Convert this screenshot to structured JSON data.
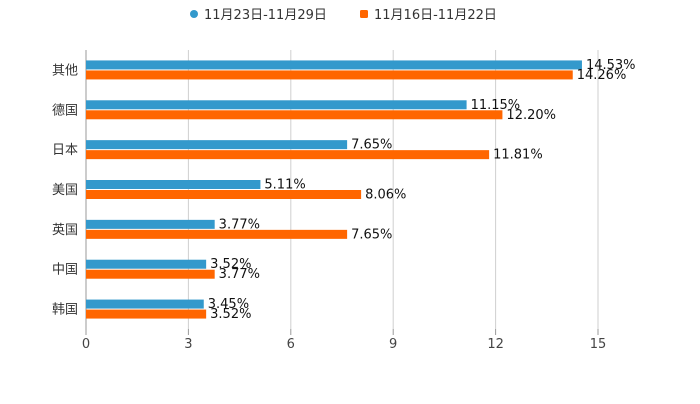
{
  "chart_data": {
    "type": "bar",
    "orientation": "horizontal",
    "categories": [
      "其他",
      "德国",
      "日本",
      "美国",
      "英国",
      "中国",
      "韩国"
    ],
    "series": [
      {
        "name": "11月23日-11月29日",
        "color": "#3399cc",
        "values": [
          14.53,
          11.15,
          7.65,
          5.11,
          3.77,
          3.52,
          3.45
        ],
        "labels": [
          "14.53%",
          "11.15%",
          "7.65%",
          "5.11%",
          "3.77%",
          "3.52%",
          "3.45%"
        ]
      },
      {
        "name": "11月16日-11月22日",
        "color": "#ff6600",
        "values": [
          14.26,
          12.2,
          11.81,
          8.06,
          7.65,
          3.77,
          3.52
        ],
        "labels": [
          "14.26%",
          "12.20%",
          "11.81%",
          "8.06%",
          "7.65%",
          "3.77%",
          "3.52%"
        ]
      }
    ],
    "xlim": [
      0,
      15
    ],
    "ticks": [
      0,
      3,
      6,
      9,
      12,
      15
    ],
    "tick_labels": [
      "0",
      "3",
      "6",
      "9",
      "12",
      "15"
    ],
    "grid": true,
    "legend_position": "top-center"
  }
}
